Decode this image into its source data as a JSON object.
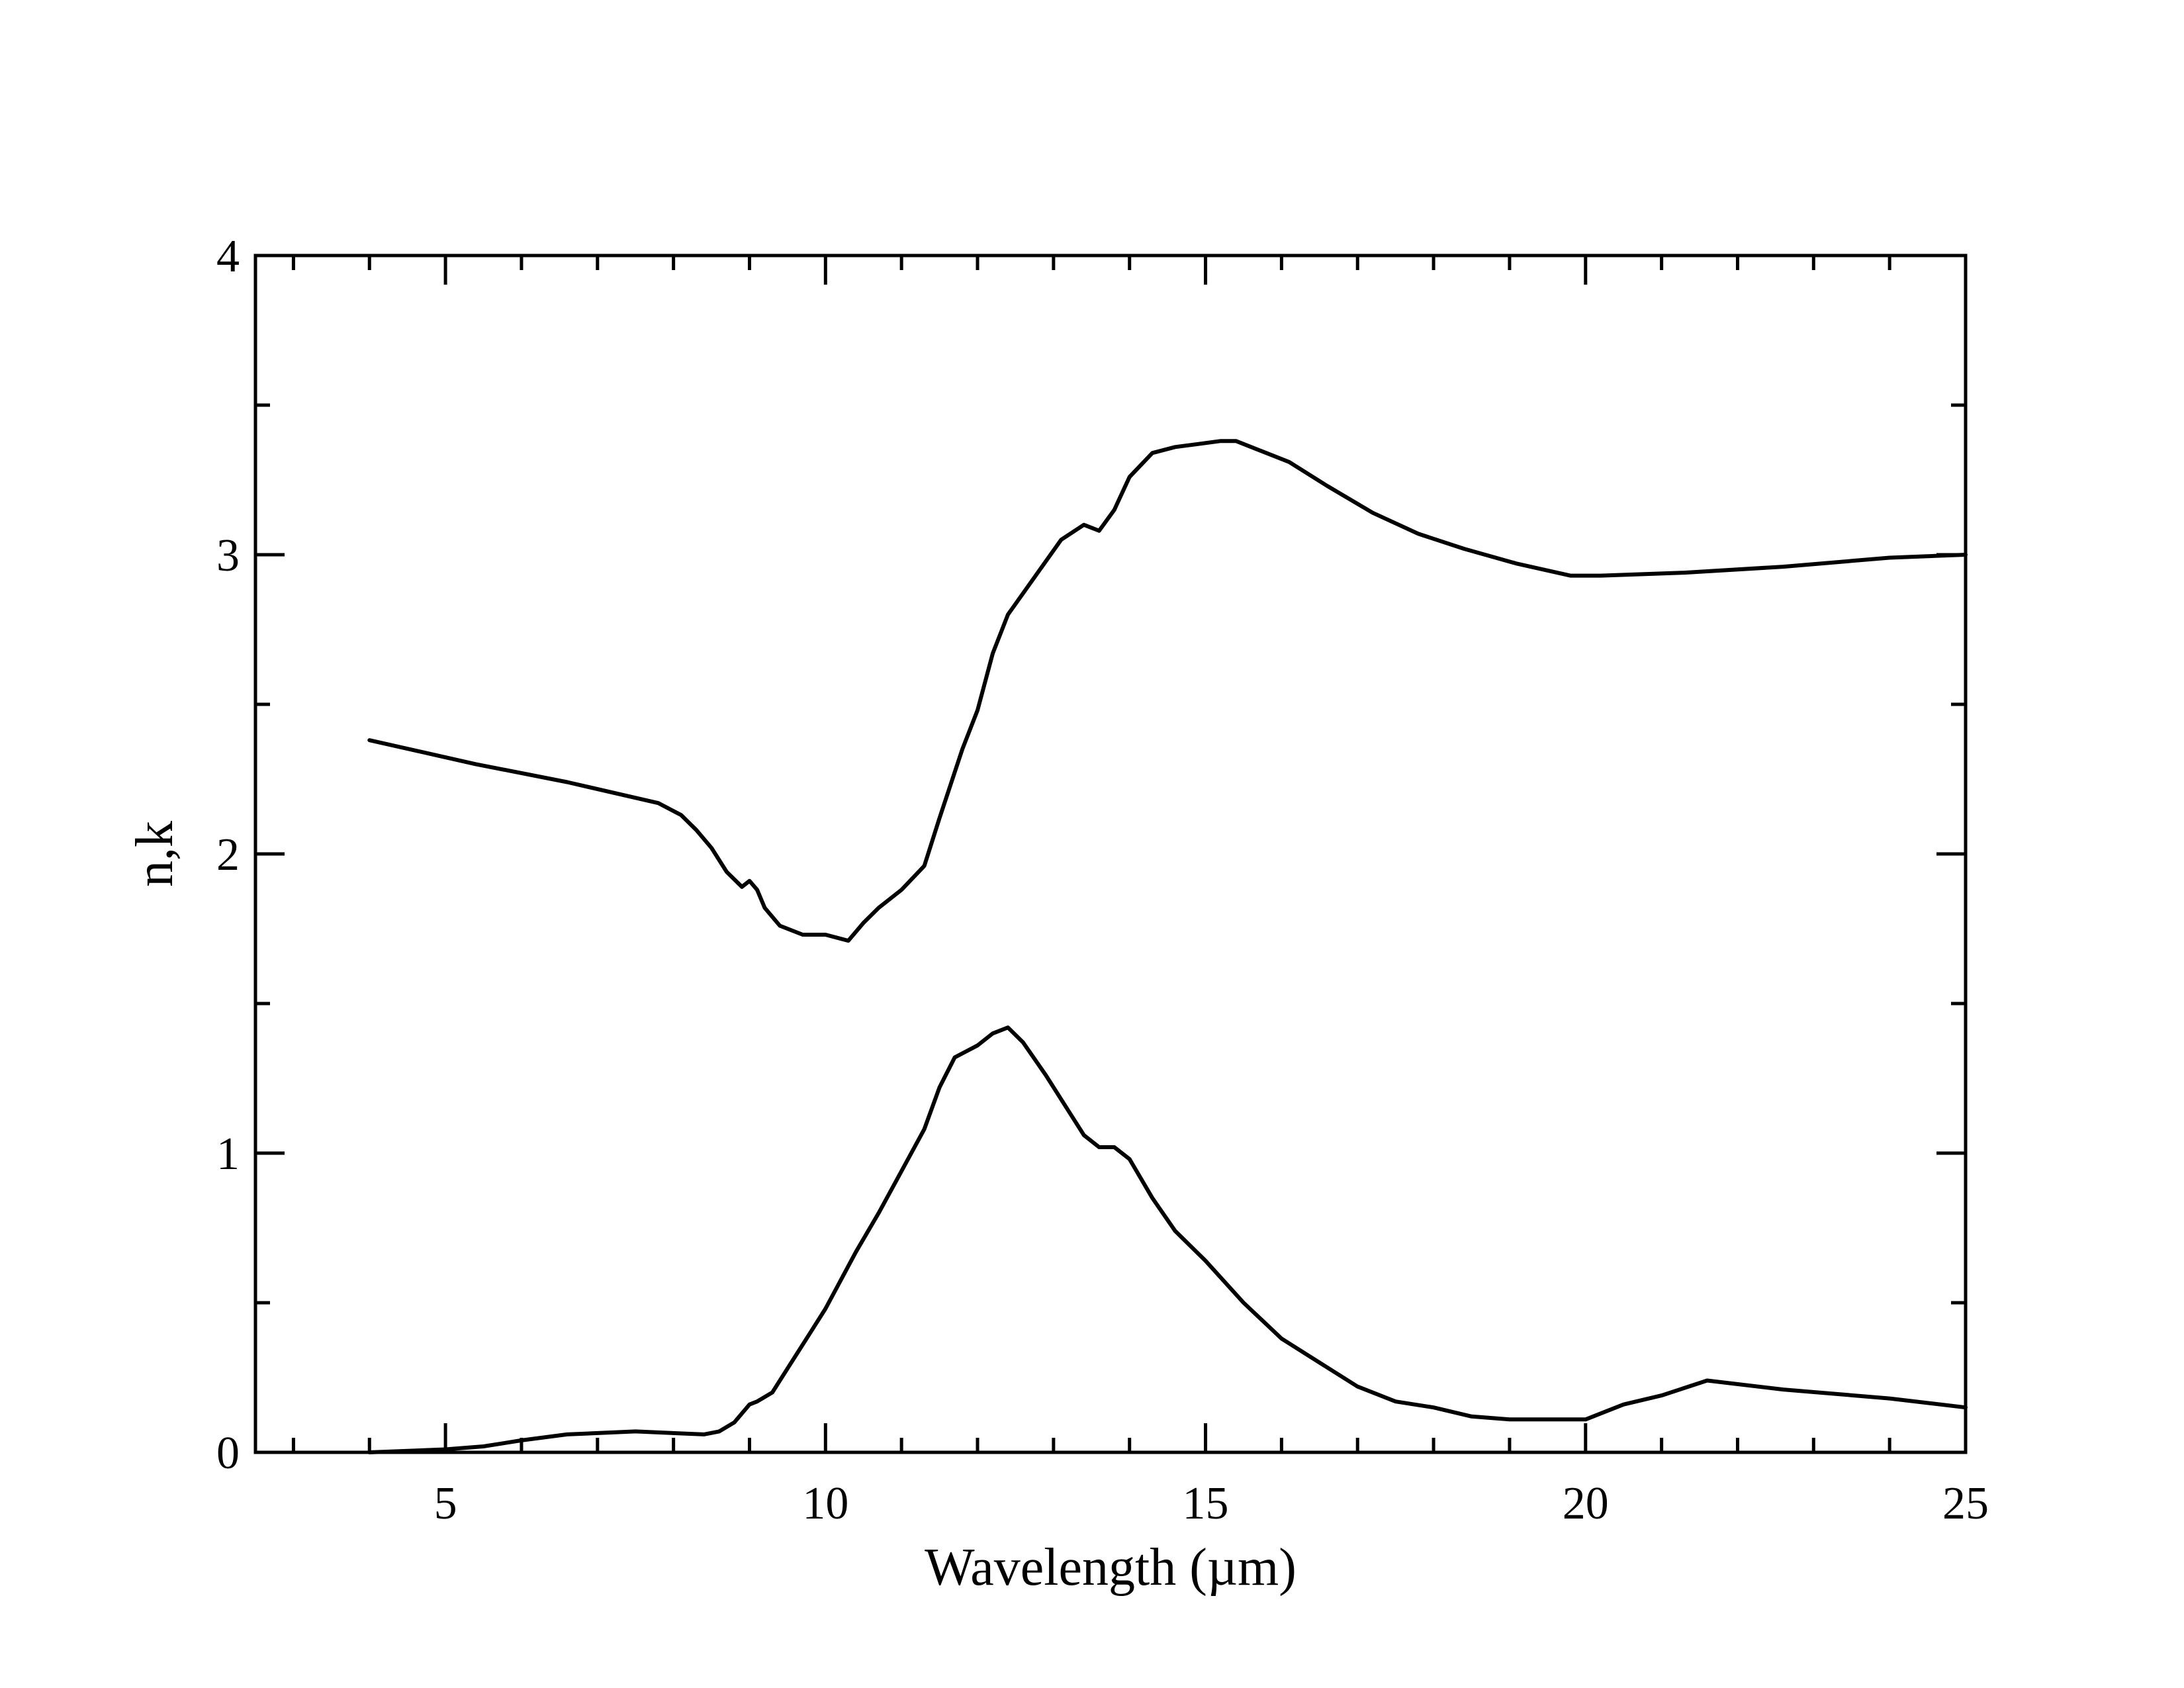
{
  "chart_data": {
    "type": "line",
    "title": "",
    "xlabel": "Wavelength (µm)",
    "ylabel": "n,k",
    "xlim": [
      2.5,
      25
    ],
    "ylim": [
      0,
      4
    ],
    "x_ticks": [
      5,
      10,
      15,
      20,
      25
    ],
    "x_tick_labels": [
      "5",
      "10",
      "15",
      "20",
      "25"
    ],
    "x_minor_step": 1,
    "y_ticks": [
      0,
      1,
      2,
      3,
      4
    ],
    "y_tick_labels": [
      "0",
      "1",
      "2",
      "3",
      "4"
    ],
    "y_minor_step": 0.5,
    "grid": false,
    "legend": "none",
    "line_color": "#000000",
    "series": [
      {
        "x": [
          4.0,
          5.4,
          6.6,
          7.8,
          8.1,
          8.3,
          8.5,
          8.7,
          8.9,
          9.0,
          9.1,
          9.2,
          9.3,
          9.4,
          9.7,
          10.0,
          10.3,
          10.5,
          10.7,
          11.0,
          11.3,
          11.5,
          11.8,
          12.0,
          12.2,
          12.4,
          13.1,
          13.4,
          13.6,
          13.8,
          14.0,
          14.3,
          14.6,
          14.9,
          15.2,
          15.4,
          15.7,
          16.1,
          16.6,
          17.2,
          17.8,
          18.4,
          19.1,
          19.8,
          20.2,
          21.3,
          22.6,
          24.0,
          25.0
        ],
        "y": [
          2.38,
          2.3,
          2.24,
          2.17,
          2.13,
          2.08,
          2.02,
          1.94,
          1.89,
          1.91,
          1.88,
          1.82,
          1.79,
          1.76,
          1.73,
          1.73,
          1.71,
          1.77,
          1.82,
          1.88,
          1.96,
          2.12,
          2.35,
          2.48,
          2.67,
          2.8,
          3.05,
          3.1,
          3.08,
          3.15,
          3.26,
          3.34,
          3.36,
          3.37,
          3.38,
          3.38,
          3.35,
          3.31,
          3.23,
          3.14,
          3.07,
          3.02,
          2.97,
          2.93,
          2.93,
          2.94,
          2.96,
          2.99,
          3.0
        ]
      },
      {
        "x": [
          4.0,
          5.0,
          5.5,
          6.0,
          6.6,
          7.5,
          8.4,
          8.6,
          8.8,
          9.0,
          9.1,
          9.3,
          9.5,
          9.8,
          10.0,
          10.4,
          10.7,
          11.0,
          11.3,
          11.5,
          11.7,
          12.0,
          12.2,
          12.4,
          12.6,
          12.9,
          13.2,
          13.4,
          13.6,
          13.8,
          14.0,
          14.3,
          14.6,
          15.0,
          15.5,
          16.0,
          16.5,
          17.0,
          17.5,
          18.0,
          18.5,
          19.0,
          19.5,
          20.0,
          20.5,
          21.0,
          21.6,
          22.6,
          24.0,
          25.0
        ],
        "y": [
          0.0,
          0.01,
          0.02,
          0.04,
          0.06,
          0.07,
          0.06,
          0.07,
          0.1,
          0.16,
          0.17,
          0.2,
          0.28,
          0.4,
          0.48,
          0.67,
          0.8,
          0.94,
          1.08,
          1.22,
          1.32,
          1.36,
          1.4,
          1.42,
          1.37,
          1.26,
          1.14,
          1.06,
          1.02,
          1.02,
          0.98,
          0.85,
          0.74,
          0.64,
          0.5,
          0.38,
          0.3,
          0.22,
          0.17,
          0.15,
          0.12,
          0.11,
          0.11,
          0.11,
          0.16,
          0.19,
          0.24,
          0.21,
          0.18,
          0.15
        ]
      }
    ]
  }
}
